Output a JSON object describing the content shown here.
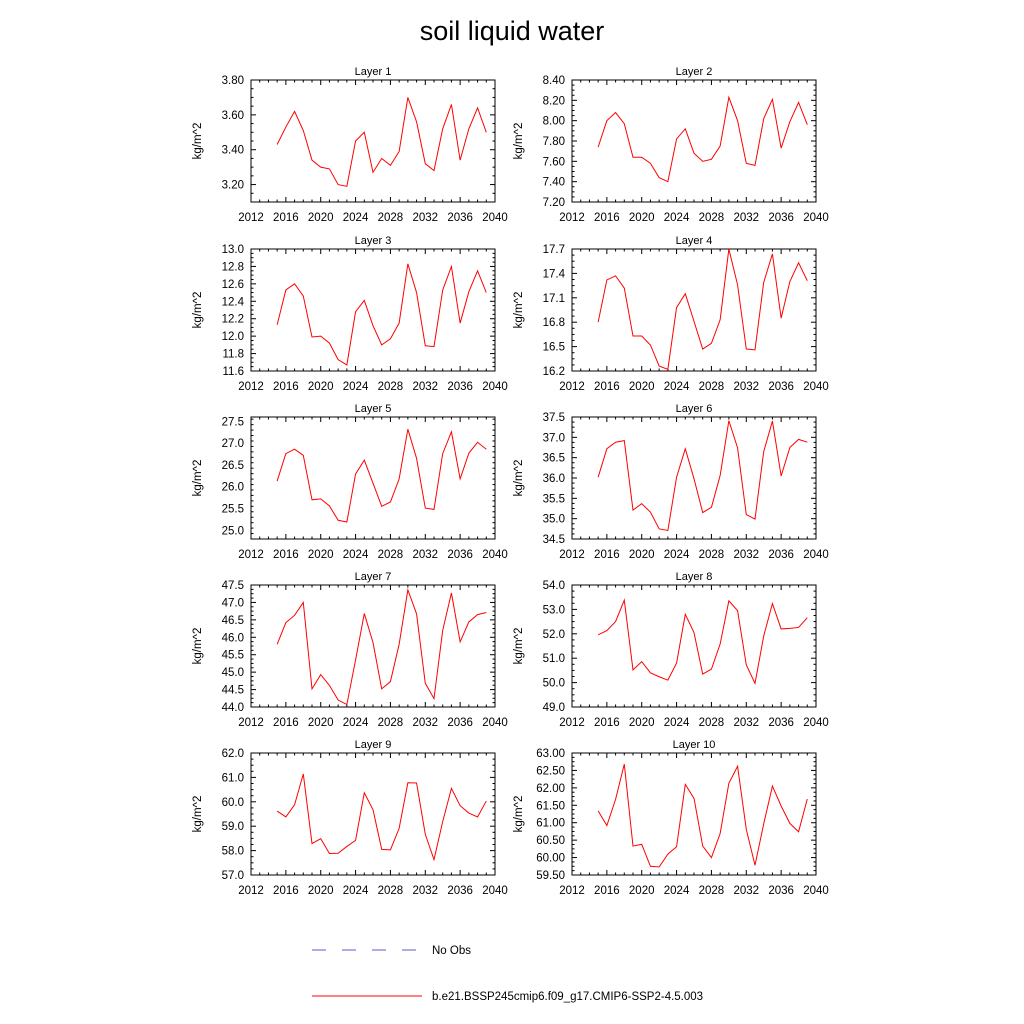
{
  "figure": {
    "title": "soil liquid water",
    "legend": [
      {
        "label": "No Obs",
        "color": "#5b5bd6",
        "style": "dashed"
      },
      {
        "label": "b.e21.BSSP245cmip6.f09_g17.CMIP6-SSP2-4.5.003",
        "color": "#ff0000",
        "style": "solid"
      }
    ]
  },
  "chart_data": [
    {
      "type": "line",
      "title": "Layer 1",
      "xlabel": "",
      "ylabel": "kg/m^2",
      "xlim": [
        2012,
        2040
      ],
      "ylim": [
        3.1,
        3.8
      ],
      "xticks": [
        2012,
        2016,
        2020,
        2024,
        2028,
        2032,
        2036,
        2040
      ],
      "xtick_labels": [
        "2012",
        "2016",
        "2020",
        "2024",
        "2028",
        "2032",
        "2036",
        "2040"
      ],
      "yticks": [
        3.2,
        3.4,
        3.6,
        3.8
      ],
      "ytick_labels": [
        "3.20",
        "3.40",
        "3.60",
        "3.80"
      ],
      "x": [
        2015,
        2016,
        2017,
        2018,
        2019,
        2020,
        2021,
        2022,
        2023,
        2024,
        2025,
        2026,
        2027,
        2028,
        2029,
        2030,
        2031,
        2032,
        2033,
        2034,
        2035,
        2036,
        2037,
        2038,
        2039
      ],
      "series": [
        {
          "color": "#ff0000",
          "values": [
            3.43,
            3.53,
            3.62,
            3.51,
            3.34,
            3.3,
            3.29,
            3.2,
            3.19,
            3.45,
            3.5,
            3.27,
            3.35,
            3.31,
            3.39,
            3.7,
            3.56,
            3.32,
            3.28,
            3.52,
            3.66,
            3.34,
            3.52,
            3.64,
            3.5
          ]
        }
      ]
    },
    {
      "type": "line",
      "title": "Layer 2",
      "xlabel": "",
      "ylabel": "kg/m^2",
      "xlim": [
        2012,
        2040
      ],
      "ylim": [
        7.2,
        8.4
      ],
      "xticks": [
        2012,
        2016,
        2020,
        2024,
        2028,
        2032,
        2036,
        2040
      ],
      "xtick_labels": [
        "2012",
        "2016",
        "2020",
        "2024",
        "2028",
        "2032",
        "2036",
        "2040"
      ],
      "yticks": [
        7.2,
        7.4,
        7.6,
        7.8,
        8.0,
        8.2,
        8.4
      ],
      "ytick_labels": [
        "7.20",
        "7.40",
        "7.60",
        "7.80",
        "8.00",
        "8.20",
        "8.40"
      ],
      "x": [
        2015,
        2016,
        2017,
        2018,
        2019,
        2020,
        2021,
        2022,
        2023,
        2024,
        2025,
        2026,
        2027,
        2028,
        2029,
        2030,
        2031,
        2032,
        2033,
        2034,
        2035,
        2036,
        2037,
        2038,
        2039
      ],
      "series": [
        {
          "color": "#ff0000",
          "values": [
            7.74,
            8.0,
            8.08,
            7.97,
            7.64,
            7.64,
            7.58,
            7.44,
            7.4,
            7.82,
            7.92,
            7.68,
            7.6,
            7.62,
            7.75,
            8.23,
            8.0,
            7.58,
            7.56,
            8.02,
            8.21,
            7.73,
            7.99,
            8.18,
            7.96
          ]
        }
      ]
    },
    {
      "type": "line",
      "title": "Layer 3",
      "xlabel": "",
      "ylabel": "kg/m^2",
      "xlim": [
        2012,
        2040
      ],
      "ylim": [
        11.6,
        13.0
      ],
      "xticks": [
        2012,
        2016,
        2020,
        2024,
        2028,
        2032,
        2036,
        2040
      ],
      "xtick_labels": [
        "2012",
        "2016",
        "2020",
        "2024",
        "2028",
        "2032",
        "2036",
        "2040"
      ],
      "yticks": [
        11.6,
        11.8,
        12.0,
        12.2,
        12.4,
        12.6,
        12.8,
        13.0
      ],
      "ytick_labels": [
        "11.6",
        "11.8",
        "12.0",
        "12.2",
        "12.4",
        "12.6",
        "12.8",
        "13.0"
      ],
      "x": [
        2015,
        2016,
        2017,
        2018,
        2019,
        2020,
        2021,
        2022,
        2023,
        2024,
        2025,
        2026,
        2027,
        2028,
        2029,
        2030,
        2031,
        2032,
        2033,
        2034,
        2035,
        2036,
        2037,
        2038,
        2039
      ],
      "series": [
        {
          "color": "#ff0000",
          "values": [
            12.13,
            12.53,
            12.6,
            12.46,
            11.99,
            12.0,
            11.92,
            11.73,
            11.67,
            12.28,
            12.41,
            12.12,
            11.9,
            11.97,
            12.15,
            12.83,
            12.5,
            11.89,
            11.88,
            12.53,
            12.8,
            12.15,
            12.51,
            12.75,
            12.5
          ]
        }
      ]
    },
    {
      "type": "line",
      "title": "Layer 4",
      "xlabel": "",
      "ylabel": "kg/m^2",
      "xlim": [
        2012,
        2040
      ],
      "ylim": [
        16.2,
        17.7
      ],
      "xticks": [
        2012,
        2016,
        2020,
        2024,
        2028,
        2032,
        2036,
        2040
      ],
      "xtick_labels": [
        "2012",
        "2016",
        "2020",
        "2024",
        "2028",
        "2032",
        "2036",
        "2040"
      ],
      "yticks": [
        16.2,
        16.5,
        16.8,
        17.1,
        17.4,
        17.7
      ],
      "ytick_labels": [
        "16.2",
        "16.5",
        "16.8",
        "17.1",
        "17.4",
        "17.7"
      ],
      "x": [
        2015,
        2016,
        2017,
        2018,
        2019,
        2020,
        2021,
        2022,
        2023,
        2024,
        2025,
        2026,
        2027,
        2028,
        2029,
        2030,
        2031,
        2032,
        2033,
        2034,
        2035,
        2036,
        2037,
        2038,
        2039
      ],
      "series": [
        {
          "color": "#ff0000",
          "values": [
            16.8,
            17.32,
            17.37,
            17.22,
            16.63,
            16.63,
            16.52,
            16.26,
            16.22,
            16.98,
            17.15,
            16.81,
            16.47,
            16.54,
            16.83,
            17.7,
            17.26,
            16.47,
            16.46,
            17.29,
            17.64,
            16.85,
            17.3,
            17.53,
            17.31
          ]
        }
      ]
    },
    {
      "type": "line",
      "title": "Layer 5",
      "xlabel": "",
      "ylabel": "kg/m^2",
      "xlim": [
        2012,
        2040
      ],
      "ylim": [
        24.8,
        27.6
      ],
      "xticks": [
        2012,
        2016,
        2020,
        2024,
        2028,
        2032,
        2036,
        2040
      ],
      "xtick_labels": [
        "2012",
        "2016",
        "2020",
        "2024",
        "2028",
        "2032",
        "2036",
        "2040"
      ],
      "yticks": [
        25.0,
        25.5,
        26.0,
        26.5,
        27.0,
        27.5
      ],
      "ytick_labels": [
        "25.0",
        "25.5",
        "26.0",
        "26.5",
        "27.0",
        "27.5"
      ],
      "x": [
        2015,
        2016,
        2017,
        2018,
        2019,
        2020,
        2021,
        2022,
        2023,
        2024,
        2025,
        2026,
        2027,
        2028,
        2029,
        2030,
        2031,
        2032,
        2033,
        2034,
        2035,
        2036,
        2037,
        2038,
        2039
      ],
      "series": [
        {
          "color": "#ff0000",
          "values": [
            26.13,
            26.76,
            26.86,
            26.72,
            25.7,
            25.72,
            25.56,
            25.23,
            25.19,
            26.29,
            26.61,
            26.08,
            25.55,
            25.65,
            26.18,
            27.32,
            26.65,
            25.51,
            25.48,
            26.76,
            27.26,
            26.18,
            26.77,
            27.02,
            26.86
          ]
        }
      ]
    },
    {
      "type": "line",
      "title": "Layer 6",
      "xlabel": "",
      "ylabel": "kg/m^2",
      "xlim": [
        2012,
        2040
      ],
      "ylim": [
        34.5,
        37.5
      ],
      "xticks": [
        2012,
        2016,
        2020,
        2024,
        2028,
        2032,
        2036,
        2040
      ],
      "xtick_labels": [
        "2012",
        "2016",
        "2020",
        "2024",
        "2028",
        "2032",
        "2036",
        "2040"
      ],
      "yticks": [
        34.5,
        35.0,
        35.5,
        36.0,
        36.5,
        37.0,
        37.5
      ],
      "ytick_labels": [
        "34.5",
        "35.0",
        "35.5",
        "36.0",
        "36.5",
        "37.0",
        "37.5"
      ],
      "x": [
        2015,
        2016,
        2017,
        2018,
        2019,
        2020,
        2021,
        2022,
        2023,
        2024,
        2025,
        2026,
        2027,
        2028,
        2029,
        2030,
        2031,
        2032,
        2033,
        2034,
        2035,
        2036,
        2037,
        2038,
        2039
      ],
      "series": [
        {
          "color": "#ff0000",
          "values": [
            36.02,
            36.72,
            36.88,
            36.92,
            35.21,
            35.37,
            35.16,
            34.75,
            34.71,
            36.02,
            36.72,
            35.98,
            35.15,
            35.28,
            36.06,
            37.41,
            36.74,
            35.1,
            34.99,
            36.65,
            37.4,
            36.05,
            36.75,
            36.95,
            36.88
          ]
        }
      ]
    },
    {
      "type": "line",
      "title": "Layer 7",
      "xlabel": "",
      "ylabel": "kg/m^2",
      "xlim": [
        2012,
        2040
      ],
      "ylim": [
        44.0,
        47.5
      ],
      "xticks": [
        2012,
        2016,
        2020,
        2024,
        2028,
        2032,
        2036,
        2040
      ],
      "xtick_labels": [
        "2012",
        "2016",
        "2020",
        "2024",
        "2028",
        "2032",
        "2036",
        "2040"
      ],
      "yticks": [
        44.0,
        44.5,
        45.0,
        45.5,
        46.0,
        46.5,
        47.0,
        47.5
      ],
      "ytick_labels": [
        "44.0",
        "44.5",
        "45.0",
        "45.5",
        "46.0",
        "46.5",
        "47.0",
        "47.5"
      ],
      "x": [
        2015,
        2016,
        2017,
        2018,
        2019,
        2020,
        2021,
        2022,
        2023,
        2024,
        2025,
        2026,
        2027,
        2028,
        2029,
        2030,
        2031,
        2032,
        2033,
        2034,
        2035,
        2036,
        2037,
        2038,
        2039
      ],
      "series": [
        {
          "color": "#ff0000",
          "values": [
            45.8,
            46.42,
            46.63,
            47.0,
            44.52,
            44.93,
            44.62,
            44.2,
            44.07,
            45.35,
            46.68,
            45.85,
            44.52,
            44.73,
            45.8,
            47.36,
            46.67,
            44.68,
            44.24,
            46.2,
            47.27,
            45.87,
            46.44,
            46.65,
            46.71
          ]
        }
      ]
    },
    {
      "type": "line",
      "title": "Layer 8",
      "xlabel": "",
      "ylabel": "kg/m^2",
      "xlim": [
        2012,
        2040
      ],
      "ylim": [
        49.0,
        54.0
      ],
      "xticks": [
        2012,
        2016,
        2020,
        2024,
        2028,
        2032,
        2036,
        2040
      ],
      "xtick_labels": [
        "2012",
        "2016",
        "2020",
        "2024",
        "2028",
        "2032",
        "2036",
        "2040"
      ],
      "yticks": [
        49.0,
        50.0,
        51.0,
        52.0,
        53.0,
        54.0
      ],
      "ytick_labels": [
        "49.0",
        "50.0",
        "51.0",
        "52.0",
        "53.0",
        "54.0"
      ],
      "x": [
        2015,
        2016,
        2017,
        2018,
        2019,
        2020,
        2021,
        2022,
        2023,
        2024,
        2025,
        2026,
        2027,
        2028,
        2029,
        2030,
        2031,
        2032,
        2033,
        2034,
        2035,
        2036,
        2037,
        2038,
        2039
      ],
      "series": [
        {
          "color": "#ff0000",
          "values": [
            51.96,
            52.13,
            52.5,
            53.38,
            50.52,
            50.86,
            50.4,
            50.24,
            50.1,
            50.8,
            52.8,
            52.05,
            50.35,
            50.55,
            51.58,
            53.35,
            52.95,
            50.73,
            49.97,
            51.91,
            53.24,
            52.2,
            52.22,
            52.26,
            52.66
          ]
        }
      ]
    },
    {
      "type": "line",
      "title": "Layer 9",
      "xlabel": "",
      "ylabel": "kg/m^2",
      "xlim": [
        2012,
        2040
      ],
      "ylim": [
        57.0,
        62.0
      ],
      "xticks": [
        2012,
        2016,
        2020,
        2024,
        2028,
        2032,
        2036,
        2040
      ],
      "xtick_labels": [
        "2012",
        "2016",
        "2020",
        "2024",
        "2028",
        "2032",
        "2036",
        "2040"
      ],
      "yticks": [
        57.0,
        58.0,
        59.0,
        60.0,
        61.0,
        62.0
      ],
      "ytick_labels": [
        "57.0",
        "58.0",
        "59.0",
        "60.0",
        "61.0",
        "62.0"
      ],
      "x": [
        2015,
        2016,
        2017,
        2018,
        2019,
        2020,
        2021,
        2022,
        2023,
        2024,
        2025,
        2026,
        2027,
        2028,
        2029,
        2030,
        2031,
        2032,
        2033,
        2034,
        2035,
        2036,
        2037,
        2038,
        2039
      ],
      "series": [
        {
          "color": "#ff0000",
          "values": [
            59.62,
            59.38,
            59.88,
            61.14,
            58.29,
            58.49,
            57.88,
            57.89,
            58.17,
            58.42,
            60.37,
            59.68,
            58.05,
            58.03,
            58.91,
            60.78,
            60.77,
            58.67,
            57.63,
            59.19,
            60.55,
            59.84,
            59.54,
            59.38,
            60.03
          ]
        }
      ]
    },
    {
      "type": "line",
      "title": "Layer 10",
      "xlabel": "",
      "ylabel": "kg/m^2",
      "xlim": [
        2012,
        2040
      ],
      "ylim": [
        59.5,
        63.0
      ],
      "xticks": [
        2012,
        2016,
        2020,
        2024,
        2028,
        2032,
        2036,
        2040
      ],
      "xtick_labels": [
        "2012",
        "2016",
        "2020",
        "2024",
        "2028",
        "2032",
        "2036",
        "2040"
      ],
      "yticks": [
        59.5,
        60.0,
        60.5,
        61.0,
        61.5,
        62.0,
        62.5,
        63.0
      ],
      "ytick_labels": [
        "59.50",
        "60.00",
        "60.50",
        "61.00",
        "61.50",
        "62.00",
        "62.50",
        "63.00"
      ],
      "x": [
        2015,
        2016,
        2017,
        2018,
        2019,
        2020,
        2021,
        2022,
        2023,
        2024,
        2025,
        2026,
        2027,
        2028,
        2029,
        2030,
        2031,
        2032,
        2033,
        2034,
        2035,
        2036,
        2037,
        2038,
        2039
      ],
      "series": [
        {
          "color": "#ff0000",
          "values": [
            61.34,
            60.92,
            61.67,
            62.68,
            60.33,
            60.38,
            59.75,
            59.73,
            60.1,
            60.31,
            62.1,
            61.7,
            60.33,
            60.0,
            60.69,
            62.13,
            62.62,
            60.81,
            59.78,
            60.97,
            62.05,
            61.48,
            60.98,
            60.74,
            61.68
          ]
        }
      ]
    }
  ]
}
